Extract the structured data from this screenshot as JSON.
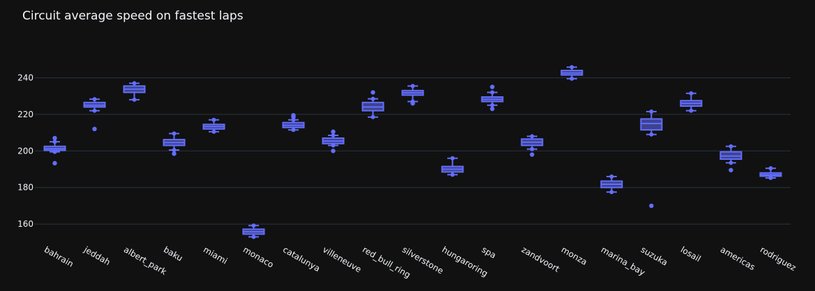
{
  "chart_data": {
    "type": "box",
    "title": "Circuit average speed on fastest laps",
    "xlabel": "",
    "ylabel": "",
    "ylim": [
      150.5,
      252.0
    ],
    "yticks": [
      160,
      180,
      200,
      220,
      240
    ],
    "grid": true,
    "legend": "none",
    "colors": {
      "background": "#111111",
      "grid": "#283442",
      "box": "#636efa",
      "text": "#f2f5fa"
    },
    "categories": [
      "bahrain",
      "jeddah",
      "albert_park",
      "baku",
      "miami",
      "monaco",
      "catalunya",
      "villeneuve",
      "red_bull_ring",
      "silverstone",
      "hungaroring",
      "spa",
      "zandvoort",
      "monza",
      "marina_bay",
      "suzuka",
      "losail",
      "americas",
      "rodriguez"
    ],
    "boxes": [
      {
        "lf": 199.5,
        "q1": 200.3,
        "med": 201.2,
        "q3": 202.5,
        "uf": 205.0,
        "outliers": [
          207.0,
          193.3
        ]
      },
      {
        "lf": 222.0,
        "q1": 224.0,
        "med": 225.0,
        "q3": 226.5,
        "uf": 228.3,
        "outliers": [
          212.0
        ]
      },
      {
        "lf": 228.0,
        "q1": 232.0,
        "med": 233.8,
        "q3": 235.5,
        "uf": 237.0,
        "outliers": []
      },
      {
        "lf": 200.5,
        "q1": 203.0,
        "med": 204.6,
        "q3": 206.2,
        "uf": 209.5,
        "outliers": [
          198.5
        ]
      },
      {
        "lf": 210.5,
        "q1": 212.0,
        "med": 213.3,
        "q3": 214.5,
        "uf": 217.0,
        "outliers": []
      },
      {
        "lf": 153.0,
        "q1": 154.5,
        "med": 155.8,
        "q3": 157.2,
        "uf": 159.2,
        "outliers": []
      },
      {
        "lf": 211.5,
        "q1": 212.8,
        "med": 214.0,
        "q3": 215.5,
        "uf": 217.0,
        "outliers": [
          218.5,
          219.5
        ]
      },
      {
        "lf": 203.0,
        "q1": 204.0,
        "med": 205.4,
        "q3": 207.0,
        "uf": 208.5,
        "outliers": [
          210.5,
          200.0
        ]
      },
      {
        "lf": 218.5,
        "q1": 222.0,
        "med": 224.0,
        "q3": 226.5,
        "uf": 228.5,
        "outliers": [
          232.0
        ]
      },
      {
        "lf": 227.0,
        "q1": 230.5,
        "med": 231.8,
        "q3": 233.0,
        "uf": 235.5,
        "outliers": [
          226.0
        ]
      },
      {
        "lf": 187.0,
        "q1": 188.5,
        "med": 190.0,
        "q3": 191.5,
        "uf": 196.0,
        "outliers": []
      },
      {
        "lf": 225.0,
        "q1": 227.0,
        "med": 228.2,
        "q3": 229.5,
        "uf": 232.0,
        "outliers": [
          235.0,
          223.0
        ]
      },
      {
        "lf": 201.0,
        "q1": 203.0,
        "med": 204.8,
        "q3": 206.5,
        "uf": 208.0,
        "outliers": [
          198.0
        ]
      },
      {
        "lf": 239.5,
        "q1": 241.5,
        "med": 242.6,
        "q3": 244.0,
        "uf": 245.8,
        "outliers": []
      },
      {
        "lf": 177.5,
        "q1": 180.0,
        "med": 181.8,
        "q3": 183.5,
        "uf": 186.0,
        "outliers": []
      },
      {
        "lf": 209.0,
        "q1": 211.5,
        "med": 215.0,
        "q3": 217.5,
        "uf": 221.5,
        "outliers": [
          170.0
        ]
      },
      {
        "lf": 222.0,
        "q1": 224.5,
        "med": 226.0,
        "q3": 227.5,
        "uf": 231.5,
        "outliers": []
      },
      {
        "lf": 193.5,
        "q1": 195.5,
        "med": 197.2,
        "q3": 199.5,
        "uf": 202.5,
        "outliers": [
          189.5
        ]
      },
      {
        "lf": 185.2,
        "q1": 186.2,
        "med": 187.0,
        "q3": 188.0,
        "uf": 190.5,
        "outliers": []
      }
    ]
  }
}
